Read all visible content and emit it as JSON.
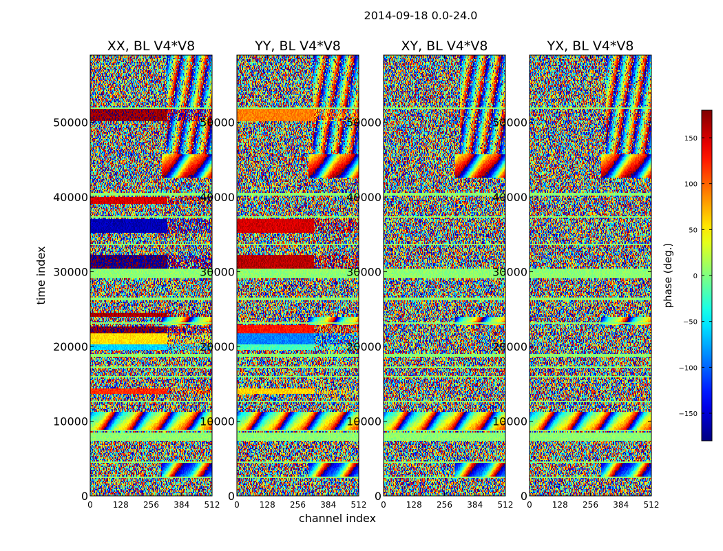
{
  "chart_data": {
    "type": "heatmap",
    "title": "2014-09-18 0.0-24.0",
    "xlabel": "channel index",
    "ylabel": "time index",
    "xlim": [
      0,
      512
    ],
    "ylim": [
      0,
      59000
    ],
    "xticks": [
      "0",
      "128",
      "256",
      "384",
      "512"
    ],
    "yticks": [
      "0",
      "10000",
      "20000",
      "30000",
      "40000",
      "50000"
    ],
    "ytick_values": [
      0,
      10000,
      20000,
      30000,
      40000,
      50000
    ],
    "xtick_values": [
      0,
      128,
      256,
      384,
      512
    ],
    "panels": [
      {
        "title": "XX, BL V4*V8",
        "strong": true,
        "bands": [
          {
            "y0": 50200,
            "y1": 51800,
            "x1": 325,
            "phase": 170
          },
          {
            "y0": 39000,
            "y1": 40000,
            "x1": 325,
            "phase": 150
          },
          {
            "y0": 35300,
            "y1": 37000,
            "x1": 325,
            "phase": -160
          },
          {
            "y0": 30500,
            "y1": 32300,
            "x1": 325,
            "phase": -175
          },
          {
            "y0": 24000,
            "y1": 24600,
            "x1": 325,
            "phase": 165
          },
          {
            "y0": 21800,
            "y1": 22600,
            "x1": 325,
            "phase": 175
          },
          {
            "y0": 20300,
            "y1": 21700,
            "x1": 325,
            "phase": 55
          },
          {
            "y0": 19600,
            "y1": 20300,
            "x1": 325,
            "phase": -60
          },
          {
            "y0": 13600,
            "y1": 14400,
            "x1": 325,
            "phase": 120
          }
        ]
      },
      {
        "title": "YY, BL V4*V8",
        "strong": true,
        "bands": [
          {
            "y0": 50200,
            "y1": 51800,
            "x1": 325,
            "phase": 90
          },
          {
            "y0": 35300,
            "y1": 37000,
            "x1": 325,
            "phase": 150
          },
          {
            "y0": 30500,
            "y1": 32300,
            "x1": 325,
            "phase": 160
          },
          {
            "y0": 21800,
            "y1": 22800,
            "x1": 325,
            "phase": 130
          },
          {
            "y0": 20200,
            "y1": 21800,
            "x1": 325,
            "phase": -90
          },
          {
            "y0": 19600,
            "y1": 20200,
            "x1": 325,
            "phase": -20
          },
          {
            "y0": 13600,
            "y1": 14300,
            "x1": 325,
            "phase": 60
          }
        ]
      },
      {
        "title": "XY, BL V4*V8",
        "strong": false,
        "bands": []
      },
      {
        "title": "YX, BL V4*V8",
        "strong": false,
        "bands": []
      }
    ],
    "flat_bands": [
      [
        51800,
        52000
      ],
      [
        40200,
        40600
      ],
      [
        37200,
        37400
      ],
      [
        33600,
        33800
      ],
      [
        29200,
        30400
      ],
      [
        26200,
        26500
      ],
      [
        23100,
        23300
      ],
      [
        18700,
        18900
      ],
      [
        17100,
        17300
      ],
      [
        15900,
        16100
      ],
      [
        12600,
        12800
      ],
      [
        7300,
        8400
      ],
      [
        8700,
        8900
      ],
      [
        4500,
        4700
      ],
      [
        2400,
        2600
      ]
    ],
    "fringe_regions": [
      {
        "y0": 8900,
        "y1": 11200,
        "x0": 0,
        "x1": 512
      },
      {
        "y0": 42500,
        "y1": 45800,
        "x0": 300,
        "x1": 512
      },
      {
        "y0": 22800,
        "y1": 24000,
        "x0": 300,
        "x1": 512
      },
      {
        "y0": 2600,
        "y1": 4500,
        "x0": 300,
        "x1": 512
      }
    ],
    "colorbar": {
      "label": "phase (deg.)",
      "range": [
        -180,
        180
      ],
      "ticks": [
        "150",
        "100",
        "50",
        "0",
        "−50",
        "−100",
        "−150"
      ],
      "tick_values": [
        150,
        100,
        50,
        0,
        -50,
        -100,
        -150
      ]
    }
  }
}
